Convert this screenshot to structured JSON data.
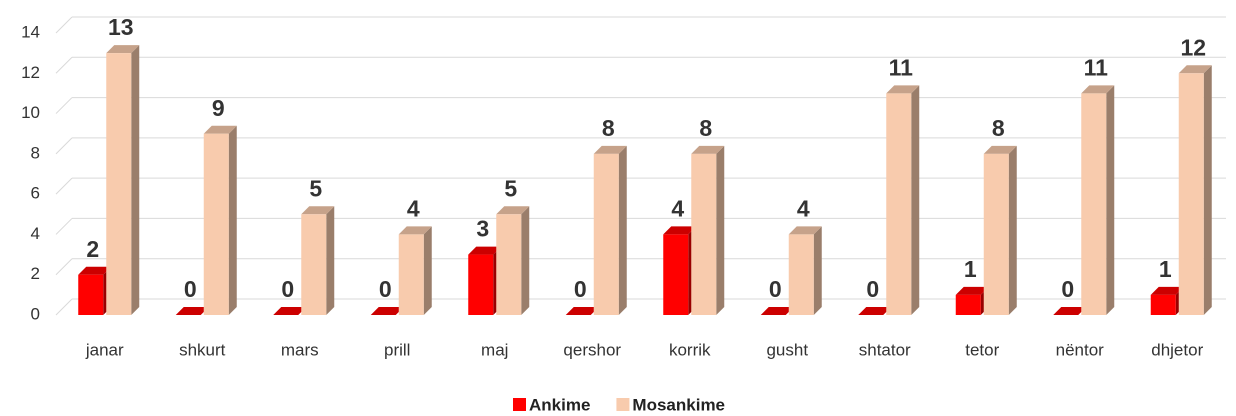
{
  "chart_data": {
    "type": "bar3d",
    "categories": [
      "janar",
      "shkurt",
      "mars",
      "prill",
      "maj",
      "qershor",
      "korrik",
      "gusht",
      "shtator",
      "tetor",
      "nëntor",
      "dhjetor"
    ],
    "series": [
      {
        "name": "Ankime",
        "color": "#ff0000",
        "values": [
          2,
          0,
          0,
          0,
          3,
          0,
          4,
          0,
          0,
          1,
          0,
          1
        ]
      },
      {
        "name": "Mosankime",
        "color": "#f8cbad",
        "values": [
          13,
          9,
          5,
          4,
          5,
          8,
          8,
          4,
          11,
          8,
          11,
          12
        ]
      }
    ],
    "ylim": [
      0,
      14
    ],
    "yticks": [
      0,
      2,
      4,
      6,
      8,
      10,
      12,
      14
    ],
    "grid": true,
    "legend": "bottom"
  }
}
